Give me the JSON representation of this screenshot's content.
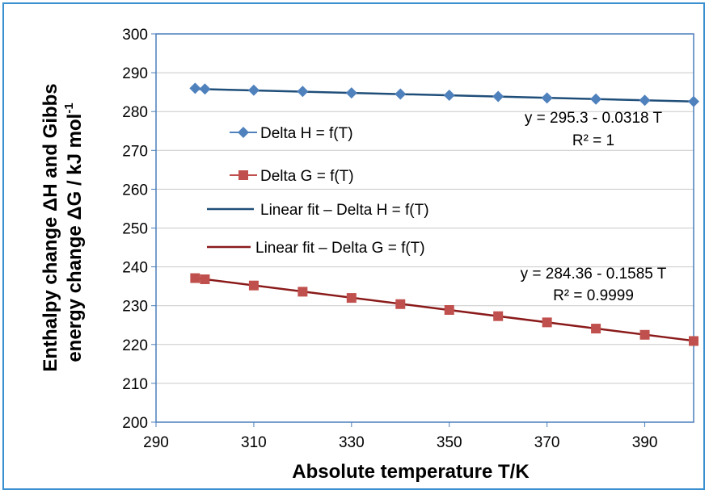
{
  "chart_data": {
    "type": "scatter",
    "xlabel": "Absolute temperature T/K",
    "ylabel_line1": "Enthalpy change ΔH and Gibbs",
    "ylabel_line2": "energy change ΔG / kJ mol",
    "ylabel_sup": "-1",
    "xlim": [
      290,
      400
    ],
    "ylim": [
      200,
      300
    ],
    "x_ticks": [
      290,
      310,
      330,
      350,
      370,
      390
    ],
    "y_ticks": [
      200,
      210,
      220,
      230,
      240,
      250,
      260,
      270,
      280,
      290,
      300
    ],
    "grid": "horizontal",
    "colors": {
      "h_marker": "#4f81bd",
      "h_fit": "#1f4e79",
      "g_marker": "#c0504d",
      "g_fit": "#8b1a1a",
      "frame": "#3a8fd0",
      "plot_border": "#4a7ebb"
    },
    "series": [
      {
        "name": "Delta H = f(T)",
        "marker": "diamond",
        "x": [
          298,
          300,
          310,
          320,
          330,
          340,
          350,
          360,
          370,
          380,
          390,
          400
        ],
        "y": [
          286.0,
          285.8,
          285.5,
          285.2,
          284.8,
          284.5,
          284.2,
          283.9,
          283.5,
          283.2,
          282.9,
          282.6
        ]
      },
      {
        "name": "Delta G = f(T)",
        "marker": "square",
        "x": [
          298,
          300,
          310,
          320,
          330,
          340,
          350,
          360,
          370,
          380,
          390,
          400
        ],
        "y": [
          237.1,
          236.8,
          235.2,
          233.6,
          232.0,
          230.4,
          228.9,
          227.3,
          225.7,
          224.1,
          222.5,
          220.9
        ]
      }
    ],
    "fits": [
      {
        "name": "Linear fit – Delta H = f(T)",
        "intercept": 295.3,
        "slope": -0.0318,
        "x_range": [
          298,
          400
        ],
        "equation": "y = 295.3 - 0.0318 T",
        "r2": "R² = 1"
      },
      {
        "name": "Linear fit – Delta G = f(T)",
        "intercept": 284.36,
        "slope": -0.1585,
        "x_range": [
          298,
          400
        ],
        "equation": "y = 284.36 - 0.1585 T",
        "r2": "R² = 0.9999"
      }
    ],
    "legend_placement": "left, inside plot"
  }
}
